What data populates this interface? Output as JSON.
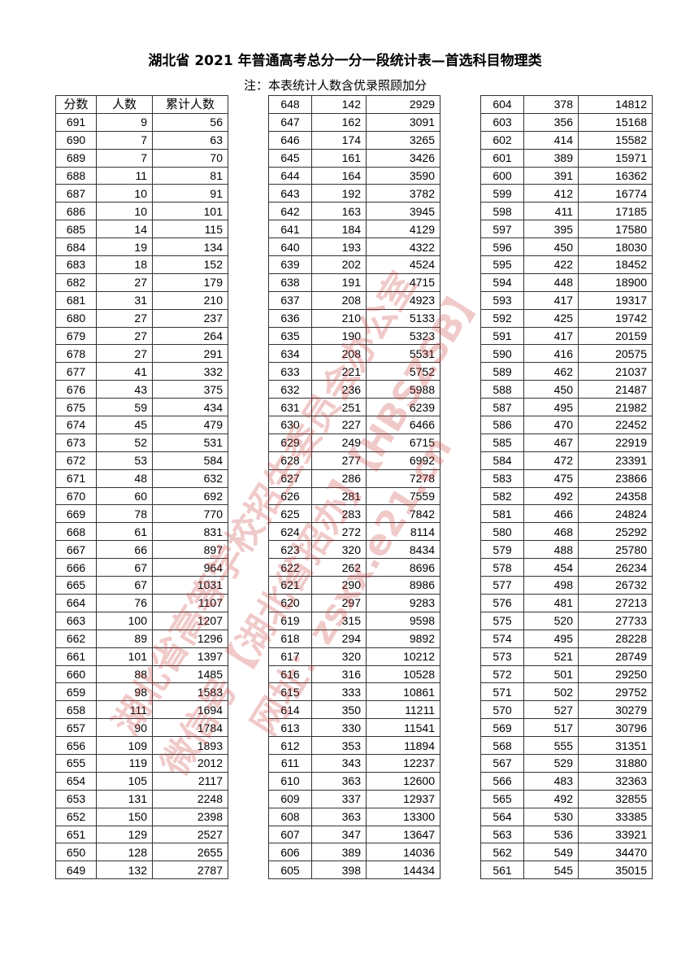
{
  "title": "湖北省 2021 年普通高考总分一分一段统计表—首选科目物理类",
  "note": "注：本表统计人数含优录照顾加分",
  "headers": [
    "分数",
    "人数",
    "累计人数"
  ],
  "watermark": [
    "湖北省高等学校招生委员会办公室",
    "微信号【湖北省招办】【HBSZSB】",
    "网址：zsxx.e21.cn"
  ],
  "tables": [
    [
      [
        691,
        9,
        56
      ],
      [
        690,
        7,
        63
      ],
      [
        689,
        7,
        70
      ],
      [
        688,
        11,
        81
      ],
      [
        687,
        10,
        91
      ],
      [
        686,
        10,
        101
      ],
      [
        685,
        14,
        115
      ],
      [
        684,
        19,
        134
      ],
      [
        683,
        18,
        152
      ],
      [
        682,
        27,
        179
      ],
      [
        681,
        31,
        210
      ],
      [
        680,
        27,
        237
      ],
      [
        679,
        27,
        264
      ],
      [
        678,
        27,
        291
      ],
      [
        677,
        41,
        332
      ],
      [
        676,
        43,
        375
      ],
      [
        675,
        59,
        434
      ],
      [
        674,
        45,
        479
      ],
      [
        673,
        52,
        531
      ],
      [
        672,
        53,
        584
      ],
      [
        671,
        48,
        632
      ],
      [
        670,
        60,
        692
      ],
      [
        669,
        78,
        770
      ],
      [
        668,
        61,
        831
      ],
      [
        667,
        66,
        897
      ],
      [
        666,
        67,
        964
      ],
      [
        665,
        67,
        1031
      ],
      [
        664,
        76,
        1107
      ],
      [
        663,
        100,
        1207
      ],
      [
        662,
        89,
        1296
      ],
      [
        661,
        101,
        1397
      ],
      [
        660,
        88,
        1485
      ],
      [
        659,
        98,
        1583
      ],
      [
        658,
        111,
        1694
      ],
      [
        657,
        90,
        1784
      ],
      [
        656,
        109,
        1893
      ],
      [
        655,
        119,
        2012
      ],
      [
        654,
        105,
        2117
      ],
      [
        653,
        131,
        2248
      ],
      [
        652,
        150,
        2398
      ],
      [
        651,
        129,
        2527
      ],
      [
        650,
        128,
        2655
      ],
      [
        649,
        132,
        2787
      ]
    ],
    [
      [
        648,
        142,
        2929
      ],
      [
        647,
        162,
        3091
      ],
      [
        646,
        174,
        3265
      ],
      [
        645,
        161,
        3426
      ],
      [
        644,
        164,
        3590
      ],
      [
        643,
        192,
        3782
      ],
      [
        642,
        163,
        3945
      ],
      [
        641,
        184,
        4129
      ],
      [
        640,
        193,
        4322
      ],
      [
        639,
        202,
        4524
      ],
      [
        638,
        191,
        4715
      ],
      [
        637,
        208,
        4923
      ],
      [
        636,
        210,
        5133
      ],
      [
        635,
        190,
        5323
      ],
      [
        634,
        208,
        5531
      ],
      [
        633,
        221,
        5752
      ],
      [
        632,
        236,
        5988
      ],
      [
        631,
        251,
        6239
      ],
      [
        630,
        227,
        6466
      ],
      [
        629,
        249,
        6715
      ],
      [
        628,
        277,
        6992
      ],
      [
        627,
        286,
        7278
      ],
      [
        626,
        281,
        7559
      ],
      [
        625,
        283,
        7842
      ],
      [
        624,
        272,
        8114
      ],
      [
        623,
        320,
        8434
      ],
      [
        622,
        262,
        8696
      ],
      [
        621,
        290,
        8986
      ],
      [
        620,
        297,
        9283
      ],
      [
        619,
        315,
        9598
      ],
      [
        618,
        294,
        9892
      ],
      [
        617,
        320,
        10212
      ],
      [
        616,
        316,
        10528
      ],
      [
        615,
        333,
        10861
      ],
      [
        614,
        350,
        11211
      ],
      [
        613,
        330,
        11541
      ],
      [
        612,
        353,
        11894
      ],
      [
        611,
        343,
        12237
      ],
      [
        610,
        363,
        12600
      ],
      [
        609,
        337,
        12937
      ],
      [
        608,
        363,
        13300
      ],
      [
        607,
        347,
        13647
      ],
      [
        606,
        389,
        14036
      ],
      [
        605,
        398,
        14434
      ]
    ],
    [
      [
        604,
        378,
        14812
      ],
      [
        603,
        356,
        15168
      ],
      [
        602,
        414,
        15582
      ],
      [
        601,
        389,
        15971
      ],
      [
        600,
        391,
        16362
      ],
      [
        599,
        412,
        16774
      ],
      [
        598,
        411,
        17185
      ],
      [
        597,
        395,
        17580
      ],
      [
        596,
        450,
        18030
      ],
      [
        595,
        422,
        18452
      ],
      [
        594,
        448,
        18900
      ],
      [
        593,
        417,
        19317
      ],
      [
        592,
        425,
        19742
      ],
      [
        591,
        417,
        20159
      ],
      [
        590,
        416,
        20575
      ],
      [
        589,
        462,
        21037
      ],
      [
        588,
        450,
        21487
      ],
      [
        587,
        495,
        21982
      ],
      [
        586,
        470,
        22452
      ],
      [
        585,
        467,
        22919
      ],
      [
        584,
        472,
        23391
      ],
      [
        583,
        475,
        23866
      ],
      [
        582,
        492,
        24358
      ],
      [
        581,
        466,
        24824
      ],
      [
        580,
        468,
        25292
      ],
      [
        579,
        488,
        25780
      ],
      [
        578,
        454,
        26234
      ],
      [
        577,
        498,
        26732
      ],
      [
        576,
        481,
        27213
      ],
      [
        575,
        520,
        27733
      ],
      [
        574,
        495,
        28228
      ],
      [
        573,
        521,
        28749
      ],
      [
        572,
        501,
        29250
      ],
      [
        571,
        502,
        29752
      ],
      [
        570,
        527,
        30279
      ],
      [
        569,
        517,
        30796
      ],
      [
        568,
        555,
        31351
      ],
      [
        567,
        529,
        31880
      ],
      [
        566,
        483,
        32363
      ],
      [
        565,
        492,
        32855
      ],
      [
        564,
        530,
        33385
      ],
      [
        563,
        536,
        33921
      ],
      [
        562,
        549,
        34470
      ],
      [
        561,
        545,
        35015
      ]
    ]
  ]
}
